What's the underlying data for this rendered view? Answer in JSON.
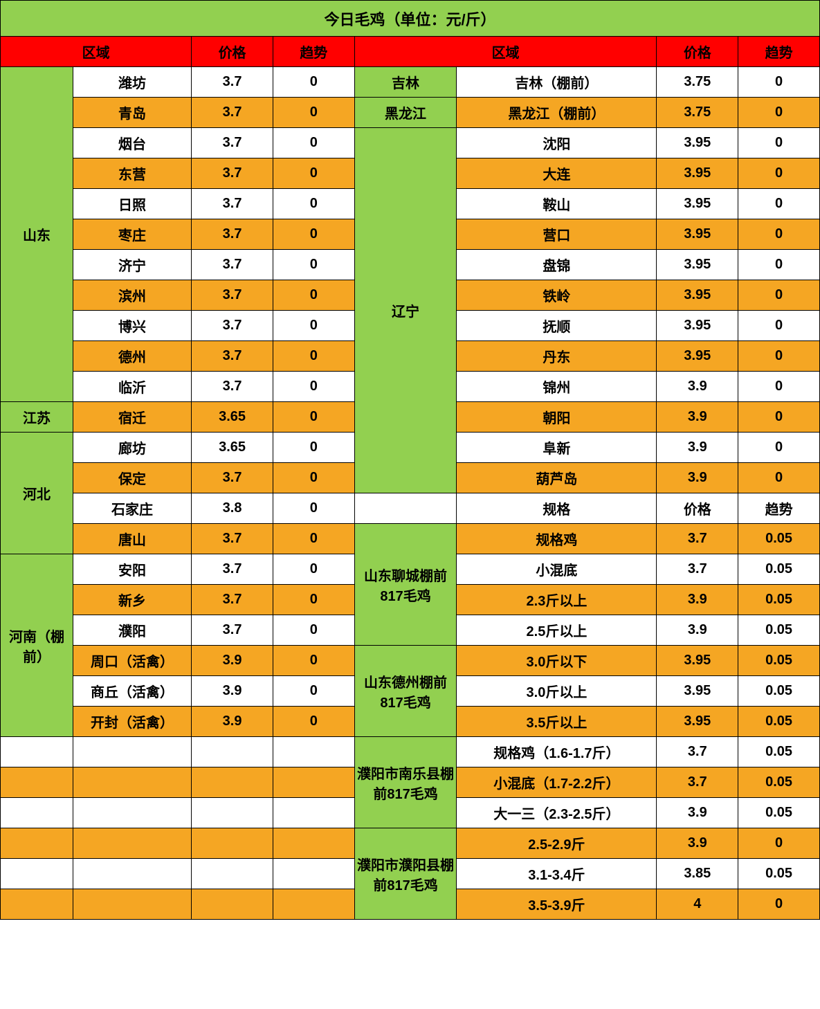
{
  "title": "今日毛鸡（单位：元/斤）",
  "headers": {
    "region": "区域",
    "price": "价格",
    "trend": "趋势",
    "spec": "规格"
  },
  "colors": {
    "green": "#92d050",
    "red": "#ff0000",
    "orange": "#f5a623",
    "white": "#ffffff",
    "border": "#000000"
  },
  "left_regions": {
    "shandong": {
      "name": "山东",
      "rows": [
        {
          "city": "潍坊",
          "price": "3.7",
          "trend": "0",
          "bg": "white"
        },
        {
          "city": "青岛",
          "price": "3.7",
          "trend": "0",
          "bg": "orange"
        },
        {
          "city": "烟台",
          "price": "3.7",
          "trend": "0",
          "bg": "white"
        },
        {
          "city": "东营",
          "price": "3.7",
          "trend": "0",
          "bg": "orange"
        },
        {
          "city": "日照",
          "price": "3.7",
          "trend": "0",
          "bg": "white"
        },
        {
          "city": "枣庄",
          "price": "3.7",
          "trend": "0",
          "bg": "orange"
        },
        {
          "city": "济宁",
          "price": "3.7",
          "trend": "0",
          "bg": "white"
        },
        {
          "city": "滨州",
          "price": "3.7",
          "trend": "0",
          "bg": "orange"
        },
        {
          "city": "博兴",
          "price": "3.7",
          "trend": "0",
          "bg": "white"
        },
        {
          "city": "德州",
          "price": "3.7",
          "trend": "0",
          "bg": "orange"
        },
        {
          "city": "临沂",
          "price": "3.7",
          "trend": "0",
          "bg": "white"
        }
      ]
    },
    "jiangsu": {
      "name": "江苏",
      "rows": [
        {
          "city": "宿迁",
          "price": "3.65",
          "trend": "0",
          "bg": "orange"
        }
      ]
    },
    "hebei": {
      "name": "河北",
      "rows": [
        {
          "city": "廊坊",
          "price": "3.65",
          "trend": "0",
          "bg": "white"
        },
        {
          "city": "保定",
          "price": "3.7",
          "trend": "0",
          "bg": "orange"
        },
        {
          "city": "石家庄",
          "price": "3.8",
          "trend": "0",
          "bg": "white"
        },
        {
          "city": "唐山",
          "price": "3.7",
          "trend": "0",
          "bg": "orange"
        }
      ]
    },
    "henan": {
      "name": "河南（棚前）",
      "rows": [
        {
          "city": "安阳",
          "price": "3.7",
          "trend": "0",
          "bg": "white"
        },
        {
          "city": "新乡",
          "price": "3.7",
          "trend": "0",
          "bg": "orange"
        },
        {
          "city": "濮阳",
          "price": "3.7",
          "trend": "0",
          "bg": "white"
        },
        {
          "city": "周口（活禽）",
          "price": "3.9",
          "trend": "0",
          "bg": "orange"
        },
        {
          "city": "商丘（活禽）",
          "price": "3.9",
          "trend": "0",
          "bg": "white"
        },
        {
          "city": "开封（活禽）",
          "price": "3.9",
          "trend": "0",
          "bg": "orange"
        }
      ]
    },
    "blank_rows": 6
  },
  "right_regions": {
    "jilin": {
      "name": "吉林",
      "rows": [
        {
          "city": "吉林（棚前）",
          "price": "3.75",
          "trend": "0",
          "bg": "white"
        }
      ]
    },
    "heilongjiang": {
      "name": "黑龙江",
      "rows": [
        {
          "city": "黑龙江（棚前）",
          "price": "3.75",
          "trend": "0",
          "bg": "orange"
        }
      ]
    },
    "liaoning": {
      "name": "辽宁",
      "rows": [
        {
          "city": "沈阳",
          "price": "3.95",
          "trend": "0",
          "bg": "white"
        },
        {
          "city": "大连",
          "price": "3.95",
          "trend": "0",
          "bg": "orange"
        },
        {
          "city": "鞍山",
          "price": "3.95",
          "trend": "0",
          "bg": "white"
        },
        {
          "city": "营口",
          "price": "3.95",
          "trend": "0",
          "bg": "orange"
        },
        {
          "city": "盘锦",
          "price": "3.95",
          "trend": "0",
          "bg": "white"
        },
        {
          "city": "铁岭",
          "price": "3.95",
          "trend": "0",
          "bg": "orange"
        },
        {
          "city": "抚顺",
          "price": "3.95",
          "trend": "0",
          "bg": "white"
        },
        {
          "city": "丹东",
          "price": "3.95",
          "trend": "0",
          "bg": "orange"
        },
        {
          "city": "锦州",
          "price": "3.9",
          "trend": "0",
          "bg": "white"
        },
        {
          "city": "朝阳",
          "price": "3.9",
          "trend": "0",
          "bg": "orange"
        },
        {
          "city": "阜新",
          "price": "3.9",
          "trend": "0",
          "bg": "white"
        },
        {
          "city": "葫芦岛",
          "price": "3.9",
          "trend": "0",
          "bg": "orange"
        }
      ]
    },
    "spec_header": {
      "spec": "规格",
      "price": "价格",
      "trend": "趋势",
      "bg": "white"
    },
    "liaocheng": {
      "name": "山东聊城棚前817毛鸡",
      "rows": [
        {
          "city": "规格鸡",
          "price": "3.7",
          "trend": "0.05",
          "bg": "orange"
        },
        {
          "city": "小混底",
          "price": "3.7",
          "trend": "0.05",
          "bg": "white"
        },
        {
          "city": "2.3斤以上",
          "price": "3.9",
          "trend": "0.05",
          "bg": "orange"
        },
        {
          "city": "2.5斤以上",
          "price": "3.9",
          "trend": "0.05",
          "bg": "white"
        }
      ]
    },
    "dezhou": {
      "name": "山东德州棚前817毛鸡",
      "rows": [
        {
          "city": "3.0斤以下",
          "price": "3.95",
          "trend": "0.05",
          "bg": "orange"
        },
        {
          "city": "3.0斤以上",
          "price": "3.95",
          "trend": "0.05",
          "bg": "white"
        },
        {
          "city": "3.5斤以上",
          "price": "3.95",
          "trend": "0.05",
          "bg": "orange"
        }
      ]
    },
    "nanle": {
      "name": "濮阳市南乐县棚前817毛鸡",
      "rows": [
        {
          "city": "规格鸡（1.6-1.7斤）",
          "price": "3.7",
          "trend": "0.05",
          "bg": "white"
        },
        {
          "city": "小混底（1.7-2.2斤）",
          "price": "3.7",
          "trend": "0.05",
          "bg": "orange"
        },
        {
          "city": "大一三（2.3-2.5斤）",
          "price": "3.9",
          "trend": "0.05",
          "bg": "white"
        }
      ]
    },
    "puyang": {
      "name": "濮阳市濮阳县棚前817毛鸡",
      "rows": [
        {
          "city": "2.5-2.9斤",
          "price": "3.9",
          "trend": "0",
          "bg": "orange"
        },
        {
          "city": "3.1-3.4斤",
          "price": "3.85",
          "trend": "0.05",
          "bg": "white"
        },
        {
          "city": "3.5-3.9斤",
          "price": "4",
          "trend": "0",
          "bg": "orange"
        }
      ]
    }
  }
}
